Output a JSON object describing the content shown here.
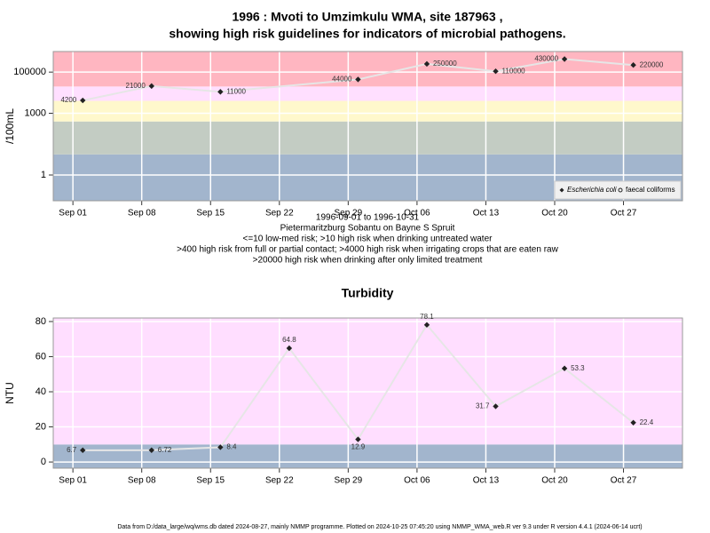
{
  "chart_data": [
    {
      "type": "line",
      "title": [
        "1996 : Mvoti to Umzimkulu WMA, site 187963 ,",
        "showing high risk guidelines for indicators of microbial pathogens."
      ],
      "subtitle": [
        "1996-09-01 to 1996-10-31",
        "Pietermaritzburg Sobantu on Bayne S Spruit",
        "<=10 low-med risk; >10 high risk when drinking untreated water",
        ">400 high risk from full or partial contact; >4000 high risk when irrigating crops that are eaten raw",
        ">20000 high risk when drinking after only limited treatment"
      ],
      "y_label": "/100mL",
      "log_y": true,
      "x": [
        "1996-09-02",
        "1996-09-09",
        "1996-09-16",
        "1996-09-30",
        "1996-10-07",
        "1996-10-14",
        "1996-10-21",
        "1996-10-28"
      ],
      "series": [
        {
          "name": "Escherichia coli",
          "color": "#222222",
          "marker": "diamond",
          "values": [
            4200,
            21000,
            11000,
            44000,
            250000,
            110000,
            430000,
            220000
          ]
        },
        {
          "name": "faecal coliforms",
          "color": "#222222",
          "marker": "circle",
          "values": [
            null,
            null,
            null,
            null,
            null,
            null,
            null,
            null
          ]
        }
      ],
      "bands": {
        "thresholds": [
          10,
          400,
          4000,
          20000
        ],
        "colors": [
          "#a2b5cd",
          "#c3ccc3",
          "#fff8cc",
          "#ffdfff",
          "#ffb6c1"
        ]
      },
      "xlim": [
        "1996-08-30",
        "1996-11-02"
      ],
      "xticks": [
        {
          "value": "1996-09-01",
          "label": "Sep 01"
        },
        {
          "value": "1996-09-08",
          "label": "Sep 08"
        },
        {
          "value": "1996-09-15",
          "label": "Sep 15"
        },
        {
          "value": "1996-09-22",
          "label": "Sep 22"
        },
        {
          "value": "1996-09-29",
          "label": "Sep 29"
        },
        {
          "value": "1996-10-06",
          "label": "Oct 06"
        },
        {
          "value": "1996-10-13",
          "label": "Oct 13"
        },
        {
          "value": "1996-10-20",
          "label": "Oct 20"
        },
        {
          "value": "1996-10-27",
          "label": "Oct 27"
        }
      ],
      "ylim": [
        0.056,
        1000000
      ],
      "yticks": [
        1,
        1000,
        100000
      ],
      "grid": true,
      "legend": "bottom-right"
    },
    {
      "type": "line",
      "title": [
        "Turbidity"
      ],
      "y_label": "NTU",
      "log_y": false,
      "x": [
        "1996-09-02",
        "1996-09-09",
        "1996-09-16",
        "1996-09-23",
        "1996-09-30",
        "1996-10-07",
        "1996-10-14",
        "1996-10-21",
        "1996-10-28"
      ],
      "series": [
        {
          "name": "Turbidity",
          "color": "#222222",
          "marker": "diamond",
          "values": [
            6.7,
            6.72,
            8.4,
            64.8,
            12.9,
            78.1,
            31.7,
            53.3,
            22.4
          ]
        }
      ],
      "bands": {
        "thresholds": [
          10
        ],
        "colors": [
          "#a2b5cd",
          "#ffdeff"
        ]
      },
      "xlim": [
        "1996-08-30",
        "1996-11-02"
      ],
      "xticks": [
        {
          "value": "1996-09-01",
          "label": "Sep 01"
        },
        {
          "value": "1996-09-08",
          "label": "Sep 08"
        },
        {
          "value": "1996-09-15",
          "label": "Sep 15"
        },
        {
          "value": "1996-09-22",
          "label": "Sep 22"
        },
        {
          "value": "1996-09-29",
          "label": "Sep 29"
        },
        {
          "value": "1996-10-06",
          "label": "Oct 06"
        },
        {
          "value": "1996-10-13",
          "label": "Oct 13"
        },
        {
          "value": "1996-10-20",
          "label": "Oct 20"
        },
        {
          "value": "1996-10-27",
          "label": "Oct 27"
        }
      ],
      "ylim": [
        -3.5,
        82
      ],
      "yticks": [
        0,
        20,
        40,
        60,
        80
      ],
      "grid": true
    }
  ],
  "footer": "Data from D:/data_large/wq/wms.db dated 2024-08-27, mainly NMMP programme. Plotted on 2024-10-25 07:45:20 using NMMP_WMA_web.R ver 9.3 under R version 4.4.1 (2024-06-14 ucrt)"
}
